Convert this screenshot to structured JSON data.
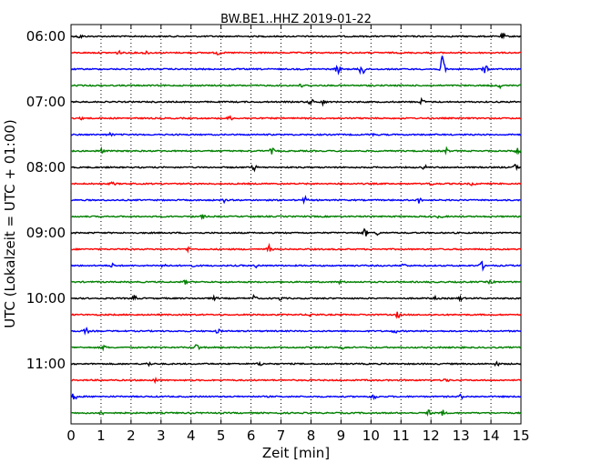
{
  "chart_data": {
    "type": "line",
    "title": "BW.BE1..HHZ 2019-01-22",
    "xlabel": "Zeit  [min]",
    "ylabel": "UTC (Lokalzeit = UTC + 01:00)",
    "xlim": [
      0,
      15
    ],
    "x_ticks": [
      "0",
      "1",
      "2",
      "3",
      "4",
      "5",
      "6",
      "7",
      "8",
      "9",
      "10",
      "11",
      "12",
      "13",
      "14",
      "15"
    ],
    "y_tick_labels": [
      "06:00",
      "07:00",
      "08:00",
      "09:00",
      "10:00",
      "11:00"
    ],
    "grid": true,
    "trace_colors": [
      "#000000",
      "#ff0000",
      "#0000ff",
      "#008000"
    ],
    "traces": [
      {
        "start": "06:00",
        "color": "#000000",
        "events": [
          [
            0.3,
            2
          ],
          [
            14.4,
            3
          ]
        ]
      },
      {
        "start": "06:15",
        "color": "#ff0000",
        "events": [
          [
            1.6,
            2
          ],
          [
            2.5,
            2
          ],
          [
            4.9,
            2
          ]
        ]
      },
      {
        "start": "06:30",
        "color": "#0000ff",
        "events": [
          [
            8.9,
            5
          ],
          [
            9.7,
            9
          ],
          [
            12.4,
            16
          ],
          [
            13.8,
            5
          ]
        ]
      },
      {
        "start": "06:45",
        "color": "#008000",
        "events": [
          [
            7.7,
            2
          ],
          [
            14.3,
            2
          ]
        ]
      },
      {
        "start": "07:00",
        "color": "#000000",
        "events": [
          [
            8.0,
            3
          ],
          [
            8.4,
            3
          ],
          [
            11.7,
            3
          ]
        ]
      },
      {
        "start": "07:15",
        "color": "#ff0000",
        "events": [
          [
            0.4,
            2
          ],
          [
            5.3,
            2
          ]
        ]
      },
      {
        "start": "07:30",
        "color": "#0000ff",
        "events": [
          [
            1.3,
            2
          ],
          [
            10.0,
            2
          ]
        ]
      },
      {
        "start": "07:45",
        "color": "#008000",
        "events": [
          [
            1.0,
            3
          ],
          [
            6.7,
            3
          ],
          [
            12.5,
            3
          ],
          [
            14.9,
            4
          ]
        ]
      },
      {
        "start": "08:00",
        "color": "#000000",
        "events": [
          [
            6.1,
            3
          ],
          [
            11.8,
            2
          ],
          [
            14.8,
            3
          ]
        ]
      },
      {
        "start": "08:15",
        "color": "#ff0000",
        "events": [
          [
            1.4,
            2
          ],
          [
            12.0,
            2
          ],
          [
            13.4,
            2
          ]
        ]
      },
      {
        "start": "08:30",
        "color": "#0000ff",
        "events": [
          [
            5.1,
            2
          ],
          [
            7.8,
            3
          ],
          [
            11.6,
            3
          ]
        ]
      },
      {
        "start": "08:45",
        "color": "#008000",
        "events": [
          [
            4.4,
            2
          ],
          [
            12.3,
            2
          ]
        ]
      },
      {
        "start": "09:00",
        "color": "#000000",
        "events": [
          [
            9.8,
            4
          ],
          [
            10.2,
            2
          ]
        ]
      },
      {
        "start": "09:15",
        "color": "#ff0000",
        "events": [
          [
            3.9,
            2
          ],
          [
            6.6,
            4
          ]
        ]
      },
      {
        "start": "09:30",
        "color": "#0000ff",
        "events": [
          [
            1.4,
            2
          ],
          [
            3.1,
            3
          ],
          [
            4.0,
            2
          ],
          [
            6.2,
            2
          ],
          [
            11.1,
            2
          ],
          [
            13.7,
            4
          ]
        ]
      },
      {
        "start": "09:45",
        "color": "#008000",
        "events": [
          [
            3.8,
            2
          ],
          [
            9.0,
            2
          ],
          [
            14.0,
            2
          ]
        ]
      },
      {
        "start": "10:00",
        "color": "#000000",
        "events": [
          [
            2.1,
            3
          ],
          [
            4.8,
            2
          ],
          [
            6.1,
            3
          ],
          [
            7.0,
            2
          ],
          [
            12.1,
            2
          ],
          [
            13.0,
            2
          ]
        ]
      },
      {
        "start": "10:15",
        "color": "#ff0000",
        "events": [
          [
            8.0,
            2
          ],
          [
            10.9,
            3
          ]
        ]
      },
      {
        "start": "10:30",
        "color": "#0000ff",
        "events": [
          [
            0.5,
            3
          ],
          [
            4.9,
            2
          ],
          [
            10.8,
            2
          ]
        ]
      },
      {
        "start": "10:45",
        "color": "#008000",
        "events": [
          [
            1.1,
            2
          ],
          [
            4.2,
            4
          ],
          [
            9.1,
            2
          ]
        ]
      },
      {
        "start": "11:00",
        "color": "#000000",
        "events": [
          [
            2.6,
            2
          ],
          [
            6.3,
            2
          ],
          [
            14.2,
            2
          ]
        ]
      },
      {
        "start": "11:15",
        "color": "#ff0000",
        "events": [
          [
            2.8,
            2
          ],
          [
            12.5,
            2
          ]
        ]
      },
      {
        "start": "11:30",
        "color": "#0000ff",
        "events": [
          [
            0.1,
            4
          ],
          [
            10.1,
            4
          ],
          [
            13.0,
            2
          ]
        ]
      },
      {
        "start": "11:45",
        "color": "#008000",
        "events": [
          [
            1.0,
            2
          ],
          [
            11.9,
            3
          ],
          [
            12.4,
            3
          ]
        ]
      }
    ]
  }
}
